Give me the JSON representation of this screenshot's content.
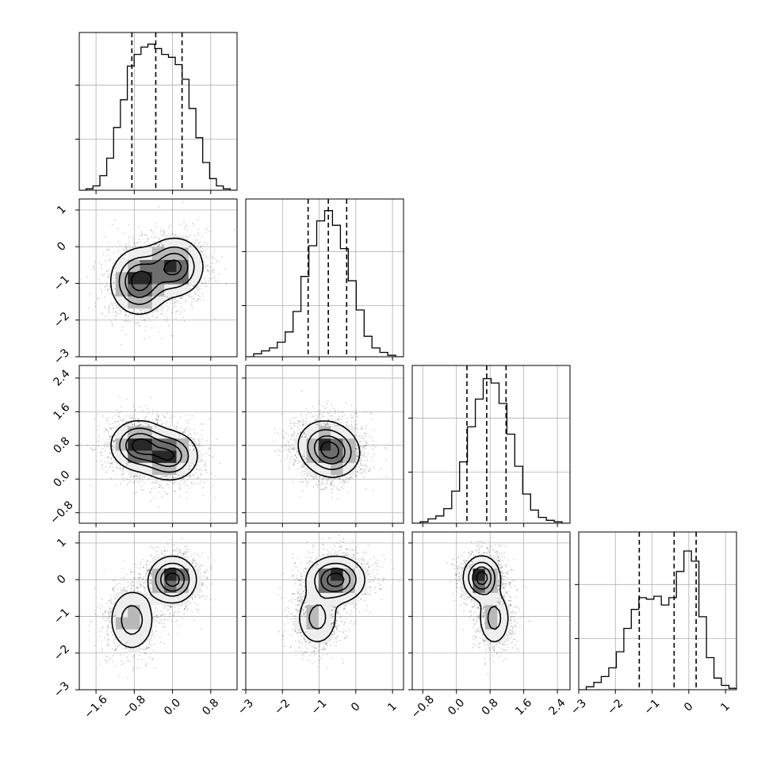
{
  "chart_data": {
    "type": "corner",
    "grid": true,
    "variables": [
      {
        "index": 0,
        "range": [
          -1.95,
          1.35
        ],
        "x_ticks": [
          -1.6,
          -0.8,
          0.0,
          0.8
        ],
        "x_tick_labels": [
          "−1.6",
          "−0.8",
          "0.0",
          "0.8"
        ],
        "hist_bins": [
          0,
          0.01,
          0.03,
          0.1,
          0.22,
          0.43,
          0.62,
          0.85,
          0.93,
          0.98,
          1.0,
          0.97,
          0.93,
          0.91,
          0.86,
          0.76,
          0.56,
          0.36,
          0.19,
          0.08,
          0.03,
          0.01,
          0
        ],
        "quantile_lines": [
          -0.85,
          -0.35,
          0.2
        ]
      },
      {
        "index": 1,
        "range": [
          -3.0,
          1.3
        ],
        "x_ticks": [
          -3,
          -2,
          -1,
          0,
          1
        ],
        "x_tick_labels": [
          "−3",
          "−2",
          "−1",
          "0",
          "1"
        ],
        "y_ticks": [
          -3,
          -2,
          -1,
          0,
          1
        ],
        "y_tick_labels": [
          "−3",
          "−2",
          "−1",
          "0",
          "1"
        ],
        "hist_bins": [
          0,
          0.02,
          0.04,
          0.06,
          0.1,
          0.17,
          0.31,
          0.55,
          0.76,
          0.93,
          1.0,
          0.9,
          0.74,
          0.52,
          0.32,
          0.14,
          0.06,
          0.03,
          0.01,
          0
        ],
        "quantile_lines": [
          -1.3,
          -0.75,
          -0.25
        ]
      },
      {
        "index": 2,
        "range": [
          -1.05,
          2.7
        ],
        "x_ticks": [
          -0.8,
          0.0,
          0.8,
          1.6,
          2.4
        ],
        "x_tick_labels": [
          "−0.8",
          "0.0",
          "0.8",
          "1.6",
          "2.4"
        ],
        "y_ticks": [
          -0.8,
          0.0,
          0.8,
          1.6,
          2.4
        ],
        "y_tick_labels": [
          "−0.8",
          "0.0",
          "0.8",
          "1.6",
          "2.4"
        ],
        "hist_bins": [
          0,
          0.01,
          0.03,
          0.05,
          0.1,
          0.22,
          0.42,
          0.66,
          0.85,
          0.99,
          0.96,
          0.82,
          0.61,
          0.39,
          0.2,
          0.09,
          0.04,
          0.02,
          0.01,
          0
        ],
        "quantile_lines": [
          0.25,
          0.72,
          1.18
        ]
      },
      {
        "index": 3,
        "range": [
          -3.0,
          1.3
        ],
        "x_ticks": [
          -3,
          -2,
          -1,
          0,
          1
        ],
        "x_tick_labels": [
          "−3",
          "−2",
          "−1",
          "0",
          "1"
        ],
        "y_ticks": [
          -3,
          -2,
          -1,
          0,
          1
        ],
        "y_tick_labels": [
          "−3",
          "−2",
          "−1",
          "0",
          "1"
        ],
        "hist_bins": [
          0,
          0.02,
          0.05,
          0.09,
          0.15,
          0.26,
          0.42,
          0.55,
          0.63,
          0.62,
          0.64,
          0.58,
          0.63,
          0.81,
          0.95,
          0.88,
          0.5,
          0.22,
          0.08,
          0.03,
          0.01
        ],
        "quantile_lines": [
          -1.35,
          -0.4,
          0.2
        ]
      }
    ],
    "pair_blobs": {
      "1-0": [
        {
          "cx": -0.7,
          "cy": -0.95,
          "sx": 0.3,
          "sy": 0.45,
          "w": 1.0
        },
        {
          "cx": 0.05,
          "cy": -0.55,
          "sx": 0.3,
          "sy": 0.4,
          "w": 0.95
        }
      ],
      "2-0": [
        {
          "cx": -0.7,
          "cy": 0.8,
          "sx": 0.3,
          "sy": 0.3,
          "w": 1.0
        },
        {
          "cx": -0.05,
          "cy": 0.55,
          "sx": 0.3,
          "sy": 0.3,
          "w": 0.9
        }
      ],
      "2-1": [
        {
          "cx": -0.9,
          "cy": 0.85,
          "sx": 0.4,
          "sy": 0.32,
          "w": 0.7
        },
        {
          "cx": -0.6,
          "cy": 0.6,
          "sx": 0.38,
          "sy": 0.3,
          "w": 1.0
        }
      ],
      "3-0": [
        {
          "cx": 0.0,
          "cy": 0.0,
          "sx": 0.25,
          "sy": 0.32,
          "w": 1.0
        },
        {
          "cx": -0.85,
          "cy": -1.1,
          "sx": 0.25,
          "sy": 0.45,
          "w": 0.55
        }
      ],
      "3-1": [
        {
          "cx": -0.55,
          "cy": 0.0,
          "sx": 0.4,
          "sy": 0.32,
          "w": 1.0
        },
        {
          "cx": -1.05,
          "cy": -1.05,
          "sx": 0.3,
          "sy": 0.4,
          "w": 0.5
        }
      ],
      "3-2": [
        {
          "cx": 0.6,
          "cy": 0.05,
          "sx": 0.22,
          "sy": 0.3,
          "w": 1.0
        },
        {
          "cx": 0.9,
          "cy": -1.05,
          "sx": 0.2,
          "sy": 0.4,
          "w": 0.5
        }
      ]
    },
    "contour_levels": [
      0.14,
      0.38,
      0.62,
      0.85
    ]
  }
}
